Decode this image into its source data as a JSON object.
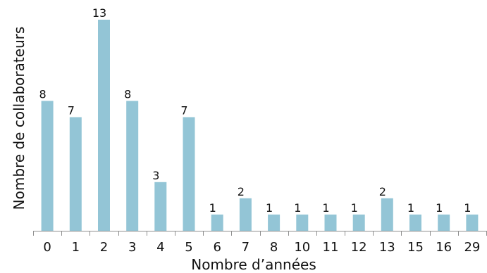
{
  "chart_data": {
    "type": "bar",
    "categories": [
      "0",
      "1",
      "2",
      "3",
      "4",
      "5",
      "6",
      "7",
      "8",
      "10",
      "11",
      "12",
      "13",
      "15",
      "16",
      "29"
    ],
    "values": [
      8,
      7,
      13,
      8,
      3,
      7,
      1,
      2,
      1,
      1,
      1,
      1,
      2,
      1,
      1,
      1
    ],
    "title": "",
    "xlabel": "Nombre d’années",
    "ylabel": "Nombre de collaborateurs",
    "ylim": [
      0,
      13
    ],
    "grid": false,
    "bar_color": "#93c5d6",
    "axis_color": "#8f8f8f"
  }
}
